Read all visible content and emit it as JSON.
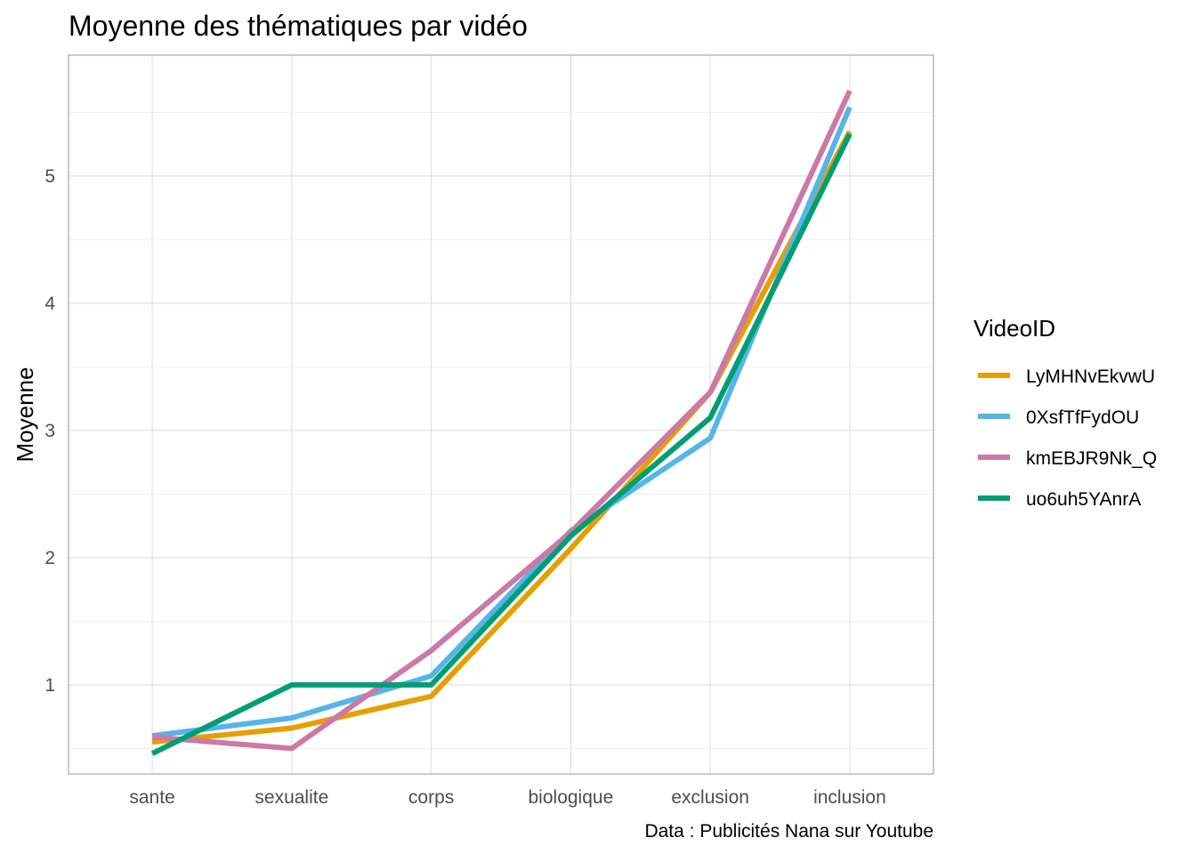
{
  "chart_data": {
    "type": "line",
    "title": "Moyenne des thématiques par vidéo",
    "xlabel": "",
    "ylabel": "Moyenne",
    "caption": "Data : Publicités Nana sur Youtube",
    "categories": [
      "sante",
      "sexualite",
      "corps",
      "biologique",
      "exclusion",
      "inclusion"
    ],
    "ylim": [
      0.3,
      5.95
    ],
    "yticks": [
      1,
      2,
      3,
      4,
      5
    ],
    "grid": true,
    "legend_title": "VideoID",
    "legend_position": "right",
    "series": [
      {
        "name": "LyMHNvEkvwU",
        "color": "#E69F00",
        "values": [
          0.55,
          0.66,
          0.91,
          2.07,
          3.3,
          5.35
        ]
      },
      {
        "name": "0XsfTfFydOU",
        "color": "#56B4E9",
        "values": [
          0.6,
          0.74,
          1.07,
          2.21,
          2.94,
          5.54
        ]
      },
      {
        "name": "kmEBJR9Nk_Q",
        "color": "#CC79A7",
        "values": [
          0.59,
          0.5,
          1.27,
          2.2,
          3.3,
          5.67
        ]
      },
      {
        "name": "uo6uh5YAnrA",
        "color": "#009E73",
        "values": [
          0.46,
          1.0,
          1.0,
          2.17,
          3.1,
          5.33
        ]
      }
    ]
  }
}
